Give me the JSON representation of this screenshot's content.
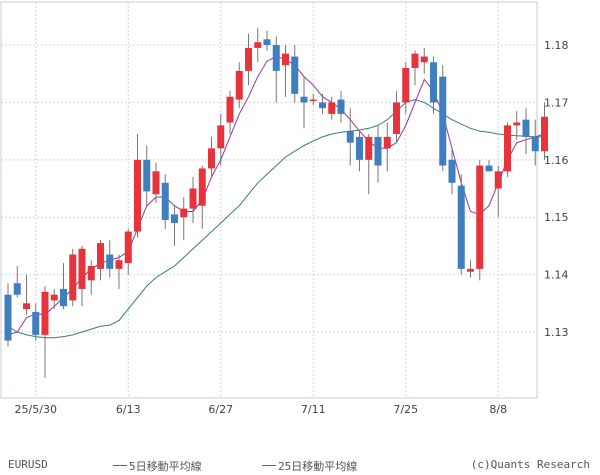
{
  "chart_data": {
    "type": "candlestick",
    "symbol": "EURUSD",
    "y_ticks": [
      "1.13",
      "1.14",
      "1.15",
      "1.16",
      "1.17",
      "1.18"
    ],
    "ylim": [
      1.1185,
      1.1875
    ],
    "x_labels": [
      {
        "label": "25/5/30",
        "index": 3
      },
      {
        "label": "6/13",
        "index": 13
      },
      {
        "label": "6/27",
        "index": 23
      },
      {
        "label": "7/11",
        "index": 33
      },
      {
        "label": "7/25",
        "index": 43
      },
      {
        "label": "8/8",
        "index": 53
      }
    ],
    "colors": {
      "up": "#e8333c",
      "down": "#3f7fc0",
      "ma5": "#9933aa",
      "ma25": "#3a7a80",
      "grid": "#cfd5e0"
    },
    "candles": [
      [
        1.1365,
        1.1385,
        1.1275,
        1.1285
      ],
      [
        1.1385,
        1.1415,
        1.136,
        1.1365
      ],
      [
        1.134,
        1.14,
        1.133,
        1.135
      ],
      [
        1.1335,
        1.135,
        1.1285,
        1.1295
      ],
      [
        1.1295,
        1.138,
        1.122,
        1.137
      ],
      [
        1.1355,
        1.1375,
        1.134,
        1.1365
      ],
      [
        1.1375,
        1.142,
        1.134,
        1.1345
      ],
      [
        1.1355,
        1.1445,
        1.1345,
        1.1435
      ],
      [
        1.1375,
        1.145,
        1.1345,
        1.1445
      ],
      [
        1.139,
        1.1425,
        1.1365,
        1.1415
      ],
      [
        1.141,
        1.146,
        1.139,
        1.1455
      ],
      [
        1.1435,
        1.146,
        1.1395,
        1.141
      ],
      [
        1.141,
        1.1435,
        1.1375,
        1.1425
      ],
      [
        1.142,
        1.148,
        1.14,
        1.1475
      ],
      [
        1.1475,
        1.1645,
        1.1465,
        1.16
      ],
      [
        1.16,
        1.1625,
        1.152,
        1.1545
      ],
      [
        1.154,
        1.1595,
        1.1525,
        1.158
      ],
      [
        1.156,
        1.1575,
        1.148,
        1.1495
      ],
      [
        1.1505,
        1.152,
        1.145,
        1.149
      ],
      [
        1.15,
        1.1535,
        1.146,
        1.1515
      ],
      [
        1.1515,
        1.157,
        1.149,
        1.155
      ],
      [
        1.152,
        1.159,
        1.148,
        1.1585
      ],
      [
        1.1585,
        1.164,
        1.157,
        1.162
      ],
      [
        1.162,
        1.168,
        1.159,
        1.166
      ],
      [
        1.1665,
        1.172,
        1.1645,
        1.171
      ],
      [
        1.1705,
        1.177,
        1.169,
        1.1755
      ],
      [
        1.1755,
        1.182,
        1.173,
        1.1795
      ],
      [
        1.1795,
        1.183,
        1.177,
        1.1805
      ],
      [
        1.181,
        1.1825,
        1.179,
        1.18
      ],
      [
        1.18,
        1.1815,
        1.17,
        1.1755
      ],
      [
        1.1765,
        1.18,
        1.171,
        1.1785
      ],
      [
        1.178,
        1.18,
        1.17,
        1.1715
      ],
      [
        1.171,
        1.1745,
        1.1655,
        1.17
      ],
      [
        1.1705,
        1.1715,
        1.1695,
        1.1705
      ],
      [
        1.17,
        1.1715,
        1.168,
        1.169
      ],
      [
        1.168,
        1.171,
        1.167,
        1.17
      ],
      [
        1.1705,
        1.172,
        1.1665,
        1.168
      ],
      [
        1.165,
        1.169,
        1.159,
        1.163
      ],
      [
        1.164,
        1.165,
        1.158,
        1.16
      ],
      [
        1.16,
        1.1645,
        1.154,
        1.164
      ],
      [
        1.164,
        1.166,
        1.156,
        1.159
      ],
      [
        1.162,
        1.1665,
        1.158,
        1.164
      ],
      [
        1.1645,
        1.172,
        1.163,
        1.17
      ],
      [
        1.17,
        1.177,
        1.168,
        1.176
      ],
      [
        1.176,
        1.179,
        1.173,
        1.1785
      ],
      [
        1.177,
        1.1795,
        1.175,
        1.178
      ],
      [
        1.177,
        1.178,
        1.168,
        1.17
      ],
      [
        1.1745,
        1.1765,
        1.158,
        1.159
      ],
      [
        1.16,
        1.162,
        1.154,
        1.156
      ],
      [
        1.1555,
        1.1575,
        1.14,
        1.141
      ],
      [
        1.1405,
        1.1425,
        1.1395,
        1.141
      ],
      [
        1.141,
        1.16,
        1.139,
        1.159
      ],
      [
        1.159,
        1.16,
        1.158,
        1.158
      ],
      [
        1.155,
        1.159,
        1.15,
        1.158
      ],
      [
        1.158,
        1.1665,
        1.157,
        1.166
      ],
      [
        1.166,
        1.1685,
        1.1635,
        1.1665
      ],
      [
        1.167,
        1.169,
        1.161,
        1.164
      ],
      [
        1.164,
        1.167,
        1.159,
        1.1615
      ],
      [
        1.1615,
        1.17,
        1.16,
        1.1675
      ]
    ],
    "ma5": [
      1.1295,
      1.13,
      1.1325,
      1.1332,
      1.133,
      1.1345,
      1.136,
      1.1375,
      1.1395,
      1.141,
      1.142,
      1.1425,
      1.143,
      1.144,
      1.148,
      1.152,
      1.1535,
      1.1535,
      1.152,
      1.151,
      1.151,
      1.153,
      1.157,
      1.16,
      1.164,
      1.168,
      1.171,
      1.1745,
      1.1772,
      1.178,
      1.1775,
      1.1765,
      1.1745,
      1.173,
      1.171,
      1.17,
      1.1688,
      1.167,
      1.165,
      1.1632,
      1.162,
      1.162,
      1.163,
      1.166,
      1.17,
      1.174,
      1.172,
      1.168,
      1.162,
      1.156,
      1.151,
      1.1505,
      1.152,
      1.156,
      1.16,
      1.163,
      1.1635,
      1.164,
      1.1645
    ],
    "ma25": [
      1.131,
      1.13,
      1.1295,
      1.1292,
      1.129,
      1.129,
      1.1292,
      1.1295,
      1.13,
      1.1305,
      1.131,
      1.1312,
      1.132,
      1.134,
      1.136,
      1.138,
      1.1395,
      1.1405,
      1.1415,
      1.143,
      1.1445,
      1.146,
      1.1475,
      1.149,
      1.1505,
      1.152,
      1.154,
      1.156,
      1.1575,
      1.159,
      1.1605,
      1.1615,
      1.1625,
      1.1633,
      1.164,
      1.1645,
      1.1648,
      1.165,
      1.1652,
      1.1655,
      1.166,
      1.167,
      1.1685,
      1.17,
      1.1705,
      1.17,
      1.169,
      1.168,
      1.167,
      1.1662,
      1.1655,
      1.165,
      1.1648,
      1.1645,
      1.1643,
      1.1642,
      1.1641,
      1.164,
      1.164
    ]
  },
  "legend": {
    "symbol": "EURUSD",
    "ma5_label": "5日移動平均線",
    "ma25_label": "25日移動平均線",
    "credit": "(c)Quants Research"
  }
}
